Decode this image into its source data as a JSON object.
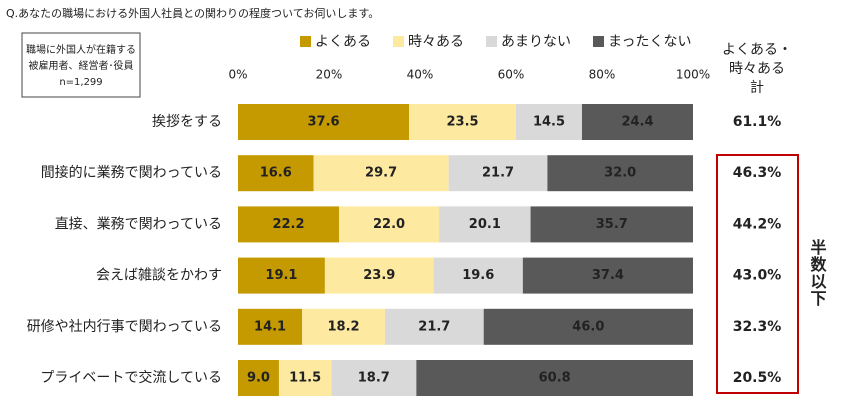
{
  "chart_data": {
    "type": "stacked-bar-horizontal",
    "title": "Q.あなたの職場における外国人社員との関わりの程度ついてお伺いします。",
    "note": [
      "職場に外国人が在籍する",
      "被雇用者、経営者･役員",
      "n=1,299"
    ],
    "categories": [
      "挨拶をする",
      "間接的に業務で関わっている",
      "直接、業務で関わっている",
      "会えば雑談をかわす",
      "研修や社内行事で関わっている",
      "プライベートで交流している"
    ],
    "series": [
      {
        "name": "よくある",
        "color": "#c49a00",
        "values": [
          37.6,
          16.6,
          22.2,
          19.1,
          14.1,
          9.0
        ],
        "value_labels": [
          "37.6",
          "16.6",
          "22.2",
          "19.1",
          "14.1",
          "9.0"
        ]
      },
      {
        "name": "時々ある",
        "color": "#fde9a0",
        "values": [
          23.5,
          29.7,
          22.0,
          23.9,
          18.2,
          11.5
        ],
        "value_labels": [
          "23.5",
          "29.7",
          "22.0",
          "23.9",
          "18.2",
          "11.5"
        ]
      },
      {
        "name": "あまりない",
        "color": "#d9d9d9",
        "values": [
          14.5,
          21.7,
          20.1,
          19.6,
          21.7,
          18.7
        ],
        "value_labels": [
          "14.5",
          "21.7",
          "20.1",
          "19.6",
          "21.7",
          "18.7"
        ]
      },
      {
        "name": "まったくない",
        "color": "#595959",
        "values": [
          24.4,
          32.0,
          35.7,
          37.4,
          46.0,
          60.8
        ],
        "value_labels": [
          "24.4",
          "32.0",
          "35.7",
          "37.4",
          "46.0",
          "60.8"
        ]
      }
    ],
    "xlim": [
      0,
      100
    ],
    "xticks": [
      {
        "value": 0,
        "label": "0%"
      },
      {
        "value": 20,
        "label": "20%"
      },
      {
        "value": 40,
        "label": "40%"
      },
      {
        "value": 60,
        "label": "60%"
      },
      {
        "value": 80,
        "label": "80%"
      },
      {
        "value": 100,
        "label": "100%"
      }
    ],
    "totals": {
      "header": [
        "よくある・",
        "時々ある",
        "計"
      ],
      "values": [
        61.1,
        46.3,
        44.2,
        43.0,
        32.3,
        20.5
      ],
      "value_labels": [
        "61.1%",
        "46.3%",
        "44.2%",
        "43.0%",
        "32.3%",
        "20.5%"
      ]
    },
    "annotation": "半数以下",
    "annotation_color": "#c00000"
  }
}
